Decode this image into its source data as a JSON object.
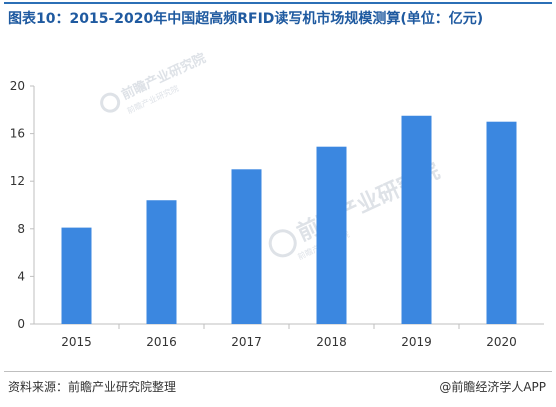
{
  "title": "图表10：2015-2020年中国超高频RFID读写机市场规模测算(单位：亿元)",
  "source": "资料来源：前瞻产业研究院整理",
  "brand": "@前瞻经济学人APP",
  "watermark": {
    "main": "前瞻产业研究院",
    "sub": "前瞻产业研究院"
  },
  "chart_data": {
    "type": "bar",
    "categories": [
      "2015",
      "2016",
      "2017",
      "2018",
      "2019",
      "2020"
    ],
    "values": [
      8.1,
      10.4,
      13.0,
      14.9,
      17.5,
      17.0
    ],
    "title": "",
    "xlabel": "",
    "ylabel": "",
    "ylim": [
      0,
      20
    ],
    "yticks": [
      0,
      4,
      8,
      12,
      16,
      20
    ],
    "grid": false,
    "bar_color": "#3b87e0",
    "axis_color": "#bfbfbf"
  }
}
